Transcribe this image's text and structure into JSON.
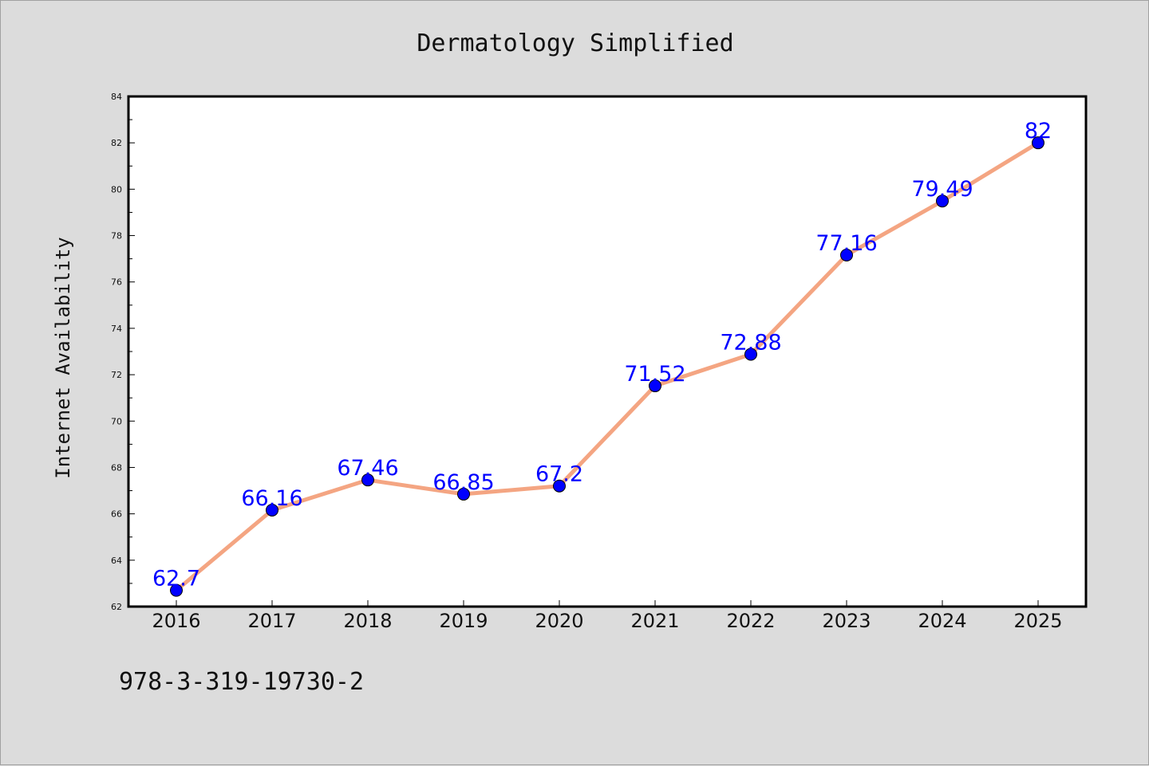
{
  "chart_data": {
    "type": "line",
    "title": "Dermatology Simplified",
    "xlabel": "",
    "ylabel": "Internet Availability",
    "categories": [
      "2016",
      "2017",
      "2018",
      "2019",
      "2020",
      "2021",
      "2022",
      "2023",
      "2024",
      "2025"
    ],
    "series": [
      {
        "values": [
          62.7,
          66.16,
          67.46,
          66.85,
          67.2,
          71.52,
          72.88,
          77.16,
          79.49,
          82
        ],
        "data_labels": [
          "62.7",
          "66.16",
          "67.46",
          "66.85",
          "67.2",
          "71.52",
          "72.88",
          "77.16",
          "79.49",
          "82"
        ],
        "line_color": "#f4a582",
        "marker_color": "#0000ff"
      }
    ],
    "ylim": [
      62,
      84
    ],
    "yticks": [
      "62",
      "64",
      "66",
      "68",
      "70",
      "72",
      "74",
      "76",
      "78",
      "80",
      "82",
      "84"
    ],
    "grid": false,
    "legend": "none"
  },
  "footer_text": "978-3-319-19730-2"
}
